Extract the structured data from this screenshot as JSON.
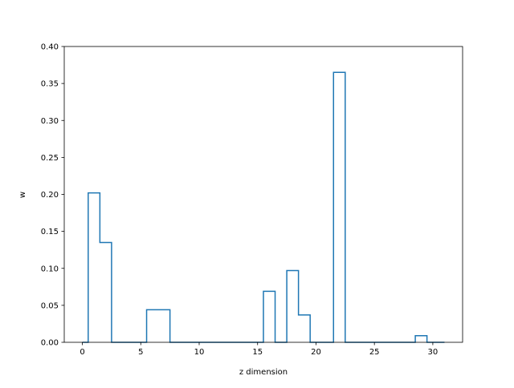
{
  "chart_data": {
    "type": "step",
    "title": "",
    "xlabel": "z dimension",
    "ylabel": "w",
    "xlim": [
      -1.55,
      32.55
    ],
    "ylim": [
      0,
      0.4
    ],
    "xticks": [
      0,
      5,
      10,
      15,
      20,
      25,
      30
    ],
    "yticks": [
      0.0,
      0.05,
      0.1,
      0.15,
      0.2,
      0.25,
      0.3,
      0.35,
      0.4
    ],
    "ytick_labels": [
      "0.00",
      "0.05",
      "0.10",
      "0.15",
      "0.20",
      "0.25",
      "0.30",
      "0.35",
      "0.40"
    ],
    "xtick_labels": [
      "0",
      "5",
      "10",
      "15",
      "20",
      "25",
      "30"
    ],
    "grid": false,
    "legend": "none",
    "color": "#1f77b4",
    "x": [
      0,
      1,
      2,
      3,
      4,
      5,
      6,
      7,
      8,
      9,
      10,
      11,
      12,
      13,
      14,
      15,
      16,
      17,
      18,
      19,
      20,
      21,
      22,
      23,
      24,
      25,
      26,
      27,
      28,
      29,
      30,
      31
    ],
    "values": [
      0.0,
      0.202,
      0.135,
      0.0,
      0.0,
      0.0,
      0.044,
      0.044,
      0.0,
      0.0,
      0.0,
      0.0,
      0.0,
      0.0,
      0.0,
      0.0,
      0.069,
      0.0,
      0.097,
      0.037,
      0.0,
      0.0,
      0.365,
      0.0,
      0.0,
      0.0,
      0.0,
      0.0,
      0.0,
      0.009,
      0.0,
      0.0
    ]
  }
}
